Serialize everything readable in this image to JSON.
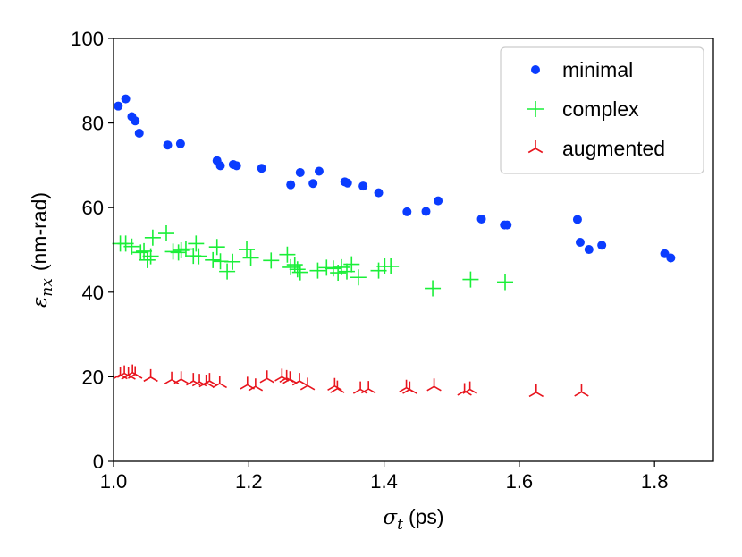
{
  "chart_data": {
    "type": "scatter",
    "title": "",
    "xlabel_symbol": "σ",
    "xlabel_sub": "t",
    "xlabel_unit": "(ps)",
    "ylabel_symbol": "ε",
    "ylabel_sub": "nx",
    "ylabel_unit": "(nm-rad)",
    "xlim": [
      1.0,
      1.887
    ],
    "ylim": [
      0,
      100
    ],
    "xticks": [
      1.0,
      1.2,
      1.4,
      1.6,
      1.8
    ],
    "xtick_labels": [
      "1.0",
      "1.2",
      "1.4",
      "1.6",
      "1.8"
    ],
    "yticks": [
      0,
      20,
      40,
      60,
      80,
      100
    ],
    "ytick_labels": [
      "0",
      "20",
      "40",
      "60",
      "80",
      "100"
    ],
    "grid": false,
    "legend_position": "top-right",
    "series": [
      {
        "name": "minimal",
        "marker": "circle",
        "color": "#0a3cff",
        "x": [
          1.007,
          1.018,
          1.027,
          1.032,
          1.038,
          1.08,
          1.099,
          1.153,
          1.158,
          1.177,
          1.182,
          1.219,
          1.262,
          1.276,
          1.295,
          1.304,
          1.342,
          1.346,
          1.369,
          1.392,
          1.434,
          1.462,
          1.48,
          1.544,
          1.578,
          1.582,
          1.686,
          1.69,
          1.703,
          1.722,
          1.815,
          1.824
        ],
        "y": [
          84.0,
          85.7,
          81.5,
          80.5,
          77.6,
          74.8,
          75.1,
          71.1,
          69.9,
          70.2,
          69.9,
          69.3,
          65.4,
          68.3,
          65.7,
          68.6,
          66.1,
          65.8,
          65.1,
          63.5,
          59.0,
          59.1,
          61.6,
          57.3,
          55.9,
          55.9,
          57.2,
          51.8,
          50.1,
          51.1,
          49.1,
          48.1
        ]
      },
      {
        "name": "complex",
        "marker": "plus",
        "color": "#1aef38",
        "x": [
          1.01,
          1.018,
          1.027,
          1.04,
          1.045,
          1.05,
          1.055,
          1.058,
          1.078,
          1.088,
          1.096,
          1.1,
          1.107,
          1.118,
          1.122,
          1.126,
          1.147,
          1.153,
          1.158,
          1.168,
          1.176,
          1.197,
          1.203,
          1.233,
          1.257,
          1.262,
          1.268,
          1.272,
          1.276,
          1.302,
          1.315,
          1.325,
          1.332,
          1.337,
          1.345,
          1.352,
          1.362,
          1.392,
          1.401,
          1.41,
          1.472,
          1.528,
          1.579
        ],
        "y": [
          51.5,
          51.5,
          50.8,
          49.4,
          49.7,
          47.6,
          48.5,
          52.9,
          53.9,
          49.6,
          49.4,
          49.9,
          50.2,
          48.6,
          51.5,
          48.5,
          47.6,
          50.7,
          47.3,
          44.9,
          47.2,
          50.1,
          48.1,
          47.5,
          48.9,
          45.9,
          46.5,
          45.4,
          44.7,
          45.1,
          45.8,
          45.6,
          44.6,
          45.9,
          44.9,
          46.6,
          43.5,
          45.1,
          46.1,
          46.1,
          40.9,
          43.0,
          42.4
        ]
      },
      {
        "name": "augmented",
        "marker": "tri_down",
        "color": "#e8141d",
        "x": [
          1.01,
          1.016,
          1.022,
          1.028,
          1.032,
          1.055,
          1.086,
          1.1,
          1.118,
          1.127,
          1.137,
          1.142,
          1.157,
          1.198,
          1.21,
          1.227,
          1.249,
          1.256,
          1.261,
          1.275,
          1.287,
          1.327,
          1.331,
          1.365,
          1.377,
          1.433,
          1.438,
          1.474,
          1.519,
          1.527,
          1.625,
          1.692
        ],
        "y": [
          20.5,
          20.8,
          20.4,
          21.0,
          20.6,
          19.9,
          19.3,
          19.4,
          19.0,
          18.8,
          18.6,
          19.0,
          18.4,
          18.1,
          17.7,
          19.6,
          20.0,
          19.7,
          19.4,
          19.0,
          17.9,
          17.8,
          17.2,
          17.0,
          17.1,
          17.4,
          17.0,
          17.7,
          16.6,
          17.0,
          16.3,
          16.4
        ]
      }
    ]
  }
}
